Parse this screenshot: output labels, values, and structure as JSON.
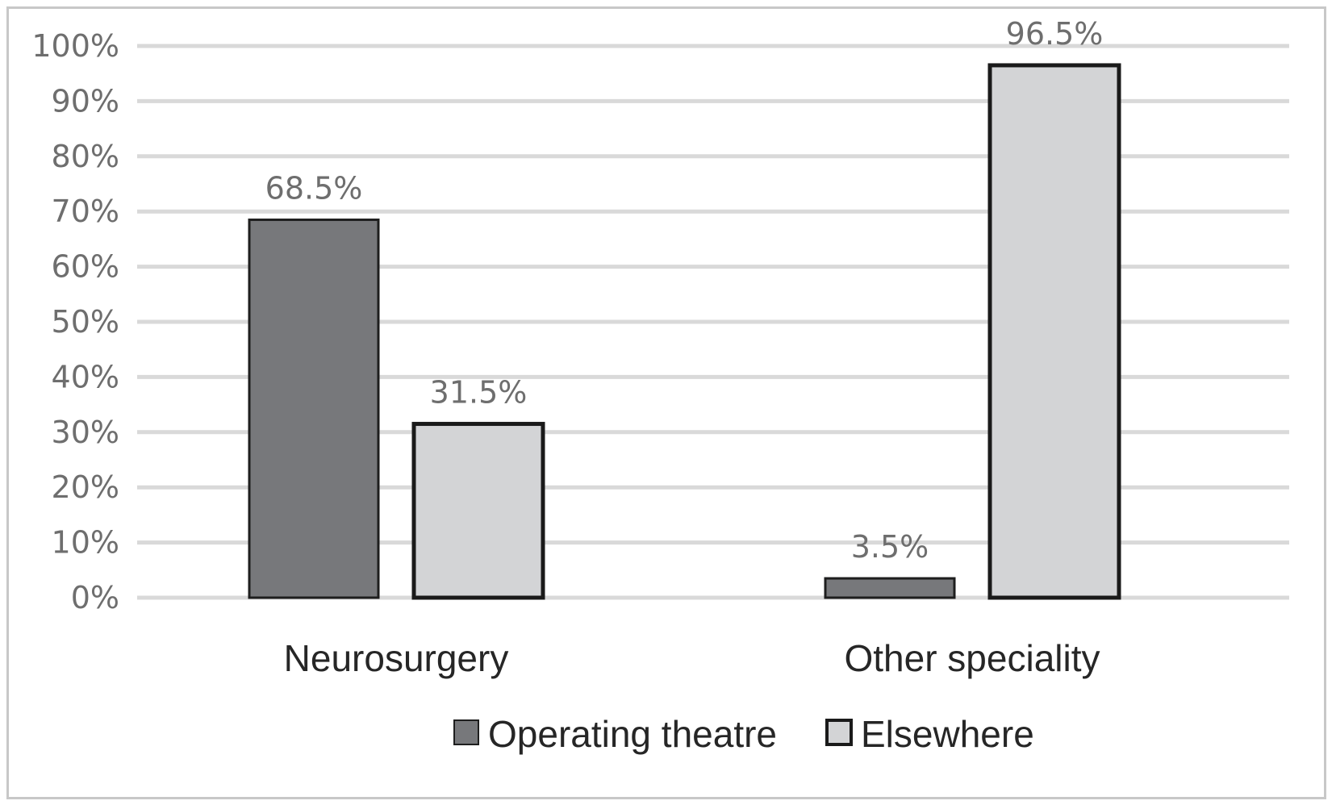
{
  "chart_data": {
    "type": "bar",
    "categories": [
      "Neurosurgery",
      "Other speciality"
    ],
    "series": [
      {
        "name": "Operating theatre",
        "values": [
          68.5,
          3.5
        ],
        "data_labels": [
          "68.5%",
          "3.5%"
        ],
        "color": "#77787b",
        "border": "#1e1e1e"
      },
      {
        "name": "Elsewhere",
        "values": [
          31.5,
          96.5
        ],
        "data_labels": [
          "31.5%",
          "96.5%"
        ],
        "color": "#d3d4d6",
        "border": "#1a1a1a"
      }
    ],
    "y_ticks": [
      "0%",
      "10%",
      "20%",
      "30%",
      "40%",
      "50%",
      "60%",
      "70%",
      "80%",
      "90%",
      "100%"
    ],
    "ylim": [
      0,
      100
    ],
    "grid": true,
    "legend_position": "bottom",
    "title": "",
    "xlabel": "",
    "ylabel": ""
  },
  "colors": {
    "gridline": "#d9d9d9",
    "frame": "#c8c8c8"
  }
}
